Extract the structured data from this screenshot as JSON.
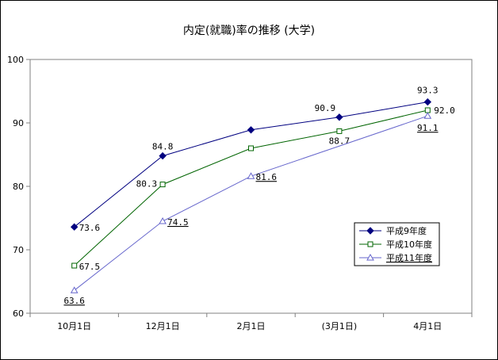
{
  "chart_data": {
    "type": "line",
    "title": "内定(就職)率の推移 (大学)",
    "xlabel": "",
    "ylabel": "",
    "categories": [
      "10月1日",
      "12月1日",
      "2月1日",
      "(3月1日)",
      "4月1日"
    ],
    "ylim": [
      60,
      100
    ],
    "yticks": [
      60,
      70,
      80,
      90,
      100
    ],
    "grid": false,
    "legend_position": "bottom-right",
    "series": [
      {
        "name": "平成9年度",
        "values": [
          73.6,
          84.8,
          88.9,
          90.9,
          93.3
        ],
        "labels": [
          "73.6",
          "84.8",
          "",
          "90.9",
          "93.3"
        ],
        "color": "#000080",
        "marker": "diamond"
      },
      {
        "name": "平成10年度",
        "values": [
          67.5,
          80.3,
          86.0,
          88.7,
          92.0
        ],
        "labels": [
          "67.5",
          "80.3",
          "",
          "88.7",
          "92.0"
        ],
        "color": "#006400",
        "marker": "square"
      },
      {
        "name": "平成11年度",
        "values": [
          63.6,
          74.5,
          81.6,
          null,
          91.1
        ],
        "labels": [
          "63.6",
          "74.5",
          "81.6",
          "",
          "91.1"
        ],
        "color": "#6666cc",
        "marker": "triangle"
      }
    ]
  }
}
